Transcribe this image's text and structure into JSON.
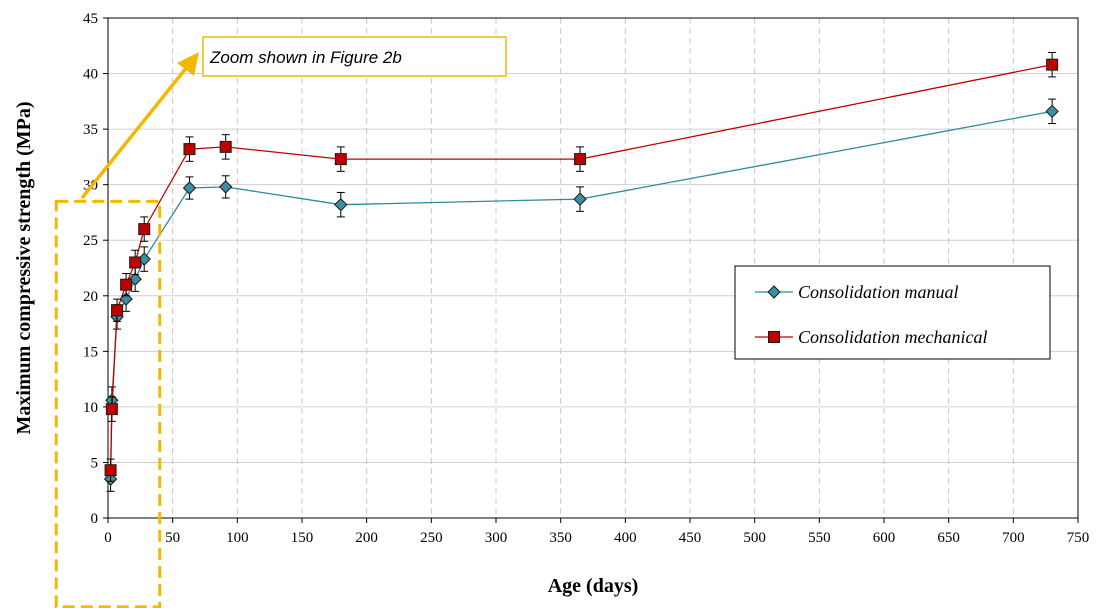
{
  "chart_data": {
    "type": "line",
    "title": "",
    "xlabel": "Age (days)",
    "ylabel": "Maximum compressive strength (MPa)",
    "xlim": [
      0,
      750
    ],
    "ylim": [
      0,
      45
    ],
    "xticks": [
      0,
      50,
      100,
      150,
      200,
      250,
      300,
      350,
      400,
      450,
      500,
      550,
      600,
      650,
      700,
      750
    ],
    "yticks": [
      0,
      5,
      10,
      15,
      20,
      25,
      30,
      35,
      40,
      45
    ],
    "grid": {
      "x": "dashed",
      "y": "solid"
    },
    "legend_position": "center-right",
    "series": [
      {
        "name": "Consolidation manual",
        "marker": "diamond",
        "color": "#2e8b9a",
        "marker_fill": "#3a8fa3",
        "x": [
          2,
          3,
          7,
          14,
          21,
          28,
          63,
          91,
          180,
          365,
          730
        ],
        "y": [
          3.5,
          10.6,
          18.1,
          19.7,
          21.5,
          23.3,
          29.7,
          29.8,
          28.2,
          28.7,
          36.6
        ],
        "error": [
          1.1,
          1.2,
          1.1,
          1.1,
          1.1,
          1.1,
          1.0,
          1.0,
          1.1,
          1.1,
          1.1
        ]
      },
      {
        "name": "Consolidation mechanical",
        "marker": "square",
        "color": "#c00000",
        "marker_fill": "#c00000",
        "x": [
          2,
          3,
          7,
          14,
          21,
          28,
          63,
          91,
          180,
          365,
          730
        ],
        "y": [
          4.3,
          9.8,
          18.7,
          21.0,
          23.0,
          26.0,
          33.2,
          33.4,
          32.3,
          32.3,
          40.8
        ],
        "error": [
          1.0,
          1.1,
          1.0,
          1.0,
          1.1,
          1.1,
          1.1,
          1.1,
          1.1,
          1.1,
          1.1
        ]
      }
    ],
    "annotations": [
      {
        "text": "Zoom shown in Figure 2b",
        "color": "#f5b800",
        "kind": "callout-with-arrow",
        "highlight_x_range": [
          -40,
          40
        ],
        "highlight_y_range": [
          -8,
          28.5
        ]
      }
    ]
  }
}
